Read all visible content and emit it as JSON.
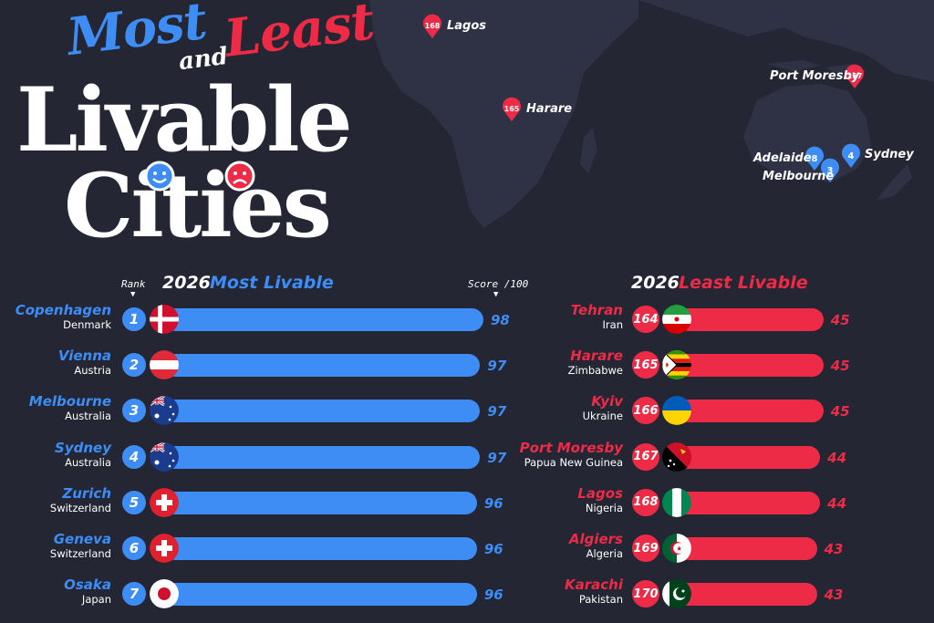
{
  "title": {
    "most": "Most",
    "and": "and",
    "least": "Least",
    "livable": "Livable",
    "cities": "Cities"
  },
  "colors": {
    "background": "#242634",
    "most": "#3d8df5",
    "least": "#ee2b47",
    "map_land": "#2e3244"
  },
  "map_pins": [
    {
      "city": "Lagos",
      "rank": "168",
      "group": "least"
    },
    {
      "city": "Harare",
      "rank": "165",
      "group": "least"
    },
    {
      "city": "Port Moresby",
      "rank": "167",
      "group": "least"
    },
    {
      "city": "Adelaide",
      "rank": "8",
      "group": "most"
    },
    {
      "city": "Melbourne",
      "rank": "3",
      "group": "most"
    },
    {
      "city": "Sydney",
      "rank": "4",
      "group": "most"
    }
  ],
  "labels": {
    "rank": "Rank",
    "score": "Score /100"
  },
  "chart_data": [
    {
      "type": "bar",
      "title": "2026 Most Livable",
      "title_year": "2026",
      "title_text": "Most Livable",
      "xlim": [
        0,
        100
      ],
      "rows": [
        {
          "rank": 1,
          "city": "Copenhagen",
          "country": "Denmark",
          "flag": "denmark",
          "score": 98
        },
        {
          "rank": 2,
          "city": "Vienna",
          "country": "Austria",
          "flag": "austria",
          "score": 97
        },
        {
          "rank": 3,
          "city": "Melbourne",
          "country": "Australia",
          "flag": "australia",
          "score": 97
        },
        {
          "rank": 4,
          "city": "Sydney",
          "country": "Australia",
          "flag": "australia",
          "score": 97
        },
        {
          "rank": 5,
          "city": "Zurich",
          "country": "Switzerland",
          "flag": "switzerland",
          "score": 96
        },
        {
          "rank": 6,
          "city": "Geneva",
          "country": "Switzerland",
          "flag": "switzerland",
          "score": 96
        },
        {
          "rank": 7,
          "city": "Osaka",
          "country": "Japan",
          "flag": "japan",
          "score": 96
        }
      ]
    },
    {
      "type": "bar",
      "title": "2026 Least Livable",
      "title_year": "2026",
      "title_text": "Least Livable",
      "xlim": [
        0,
        100
      ],
      "rows": [
        {
          "rank": 164,
          "city": "Tehran",
          "country": "Iran",
          "flag": "iran",
          "score": 45
        },
        {
          "rank": 165,
          "city": "Harare",
          "country": "Zimbabwe",
          "flag": "zimbabwe",
          "score": 45
        },
        {
          "rank": 166,
          "city": "Kyiv",
          "country": "Ukraine",
          "flag": "ukraine",
          "score": 45
        },
        {
          "rank": 167,
          "city": "Port Moresby",
          "country": "Papua New Guinea",
          "flag": "png",
          "score": 44
        },
        {
          "rank": 168,
          "city": "Lagos",
          "country": "Nigeria",
          "flag": "nigeria",
          "score": 44
        },
        {
          "rank": 169,
          "city": "Algiers",
          "country": "Algeria",
          "flag": "algeria",
          "score": 43
        },
        {
          "rank": 170,
          "city": "Karachi",
          "country": "Pakistan",
          "flag": "pakistan",
          "score": 43
        }
      ]
    }
  ]
}
